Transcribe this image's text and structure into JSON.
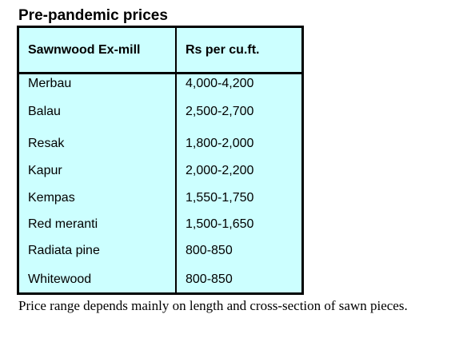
{
  "title": "Pre-pandemic prices",
  "table": {
    "headers": [
      "Sawnwood Ex-mill",
      "Rs per cu.ft."
    ],
    "rows": [
      {
        "wood": "Merbau",
        "price": "4,000-4,200"
      },
      {
        "wood": "Balau",
        "price": "2,500-2,700"
      },
      {
        "wood": "Resak",
        "price": "1,800-2,000"
      },
      {
        "wood": "Kapur",
        "price": "2,000-2,200"
      },
      {
        "wood": "Kempas",
        "price": "1,550-1,750"
      },
      {
        "wood": "Red meranti",
        "price": "1,500-1,650"
      },
      {
        "wood": "Radiata pine",
        "price": "800-850"
      },
      {
        "wood": "Whitewood",
        "price": "800-850"
      }
    ]
  },
  "footnote": "Price range depends mainly on length and cross-section of sawn pieces.",
  "colors": {
    "table_background": "#ccffff",
    "border": "#000000"
  }
}
